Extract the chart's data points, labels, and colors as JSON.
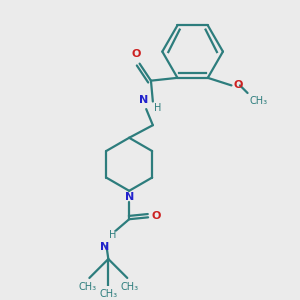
{
  "bg_color": "#ebebeb",
  "bond_color": "#2d7d7d",
  "N_color": "#2222cc",
  "O_color": "#cc2020",
  "font_size": 8,
  "line_width": 1.6,
  "xlim": [
    0,
    3
  ],
  "ylim": [
    0,
    3
  ]
}
